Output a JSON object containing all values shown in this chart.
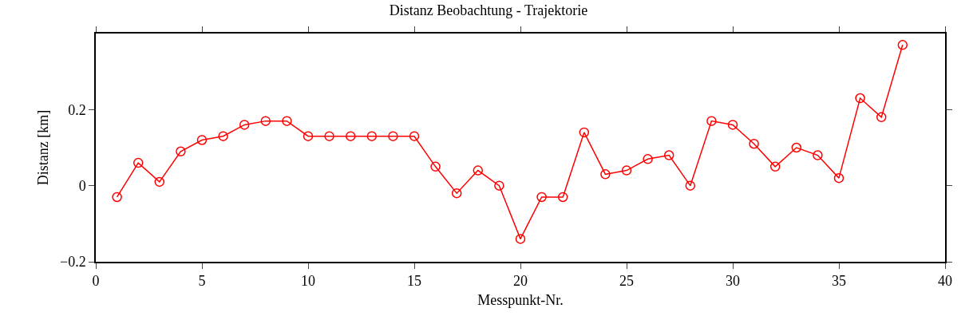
{
  "chart_data": {
    "type": "line",
    "title": "Distanz Beobachtung - Trajektorie",
    "xlabel": "Messpunkt-Nr.",
    "ylabel": "Distanz [km]",
    "x": [
      1,
      2,
      3,
      4,
      5,
      6,
      7,
      8,
      9,
      10,
      11,
      12,
      13,
      14,
      15,
      16,
      17,
      18,
      19,
      20,
      21,
      22,
      23,
      24,
      25,
      26,
      27,
      28,
      29,
      30,
      31,
      32,
      33,
      34,
      35,
      36,
      37,
      38
    ],
    "series": [
      {
        "color": "#ff0000",
        "values": [
          -0.03,
          0.06,
          0.01,
          0.09,
          0.12,
          0.13,
          0.16,
          0.17,
          0.17,
          0.13,
          0.13,
          0.13,
          0.13,
          0.13,
          0.13,
          0.05,
          -0.02,
          0.04,
          0.0,
          -0.14,
          -0.03,
          -0.03,
          0.14,
          0.03,
          0.04,
          0.07,
          0.08,
          0.0,
          0.17,
          0.16,
          0.11,
          0.05,
          0.1,
          0.08,
          0.02,
          0.23,
          0.18,
          0.37
        ]
      }
    ],
    "xlim": [
      0,
      40
    ],
    "xticks": [
      0,
      5,
      10,
      15,
      20,
      25,
      30,
      35,
      40
    ],
    "ylim": [
      -0.2,
      0.4
    ],
    "yticks": [
      {
        "value": -0.2,
        "label": "−0.2"
      },
      0,
      0.2
    ],
    "grid": false,
    "marker": "circle",
    "line_style": "solid"
  }
}
